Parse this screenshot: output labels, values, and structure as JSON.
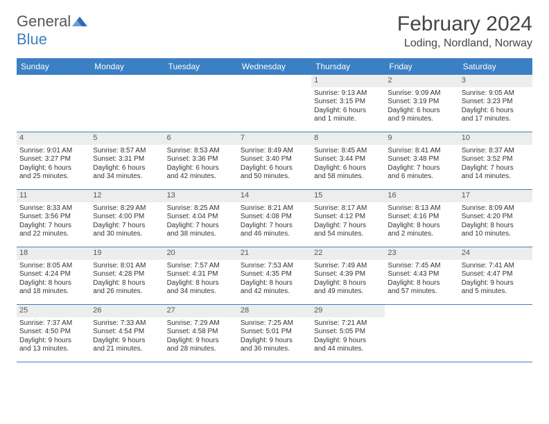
{
  "logo": {
    "part1": "General",
    "part2": "Blue"
  },
  "title": "February 2024",
  "location": "Loding, Nordland, Norway",
  "brand_color": "#3b7fc4",
  "header_bg": "#3b7fc4",
  "date_bar_bg": "#eceded",
  "day_headers": [
    "Sunday",
    "Monday",
    "Tuesday",
    "Wednesday",
    "Thursday",
    "Friday",
    "Saturday"
  ],
  "weeks": [
    [
      null,
      null,
      null,
      null,
      {
        "d": "1",
        "sr": "Sunrise: 9:13 AM",
        "ss": "Sunset: 3:15 PM",
        "dl1": "Daylight: 6 hours",
        "dl2": "and 1 minute."
      },
      {
        "d": "2",
        "sr": "Sunrise: 9:09 AM",
        "ss": "Sunset: 3:19 PM",
        "dl1": "Daylight: 6 hours",
        "dl2": "and 9 minutes."
      },
      {
        "d": "3",
        "sr": "Sunrise: 9:05 AM",
        "ss": "Sunset: 3:23 PM",
        "dl1": "Daylight: 6 hours",
        "dl2": "and 17 minutes."
      }
    ],
    [
      {
        "d": "4",
        "sr": "Sunrise: 9:01 AM",
        "ss": "Sunset: 3:27 PM",
        "dl1": "Daylight: 6 hours",
        "dl2": "and 25 minutes."
      },
      {
        "d": "5",
        "sr": "Sunrise: 8:57 AM",
        "ss": "Sunset: 3:31 PM",
        "dl1": "Daylight: 6 hours",
        "dl2": "and 34 minutes."
      },
      {
        "d": "6",
        "sr": "Sunrise: 8:53 AM",
        "ss": "Sunset: 3:36 PM",
        "dl1": "Daylight: 6 hours",
        "dl2": "and 42 minutes."
      },
      {
        "d": "7",
        "sr": "Sunrise: 8:49 AM",
        "ss": "Sunset: 3:40 PM",
        "dl1": "Daylight: 6 hours",
        "dl2": "and 50 minutes."
      },
      {
        "d": "8",
        "sr": "Sunrise: 8:45 AM",
        "ss": "Sunset: 3:44 PM",
        "dl1": "Daylight: 6 hours",
        "dl2": "and 58 minutes."
      },
      {
        "d": "9",
        "sr": "Sunrise: 8:41 AM",
        "ss": "Sunset: 3:48 PM",
        "dl1": "Daylight: 7 hours",
        "dl2": "and 6 minutes."
      },
      {
        "d": "10",
        "sr": "Sunrise: 8:37 AM",
        "ss": "Sunset: 3:52 PM",
        "dl1": "Daylight: 7 hours",
        "dl2": "and 14 minutes."
      }
    ],
    [
      {
        "d": "11",
        "sr": "Sunrise: 8:33 AM",
        "ss": "Sunset: 3:56 PM",
        "dl1": "Daylight: 7 hours",
        "dl2": "and 22 minutes."
      },
      {
        "d": "12",
        "sr": "Sunrise: 8:29 AM",
        "ss": "Sunset: 4:00 PM",
        "dl1": "Daylight: 7 hours",
        "dl2": "and 30 minutes."
      },
      {
        "d": "13",
        "sr": "Sunrise: 8:25 AM",
        "ss": "Sunset: 4:04 PM",
        "dl1": "Daylight: 7 hours",
        "dl2": "and 38 minutes."
      },
      {
        "d": "14",
        "sr": "Sunrise: 8:21 AM",
        "ss": "Sunset: 4:08 PM",
        "dl1": "Daylight: 7 hours",
        "dl2": "and 46 minutes."
      },
      {
        "d": "15",
        "sr": "Sunrise: 8:17 AM",
        "ss": "Sunset: 4:12 PM",
        "dl1": "Daylight: 7 hours",
        "dl2": "and 54 minutes."
      },
      {
        "d": "16",
        "sr": "Sunrise: 8:13 AM",
        "ss": "Sunset: 4:16 PM",
        "dl1": "Daylight: 8 hours",
        "dl2": "and 2 minutes."
      },
      {
        "d": "17",
        "sr": "Sunrise: 8:09 AM",
        "ss": "Sunset: 4:20 PM",
        "dl1": "Daylight: 8 hours",
        "dl2": "and 10 minutes."
      }
    ],
    [
      {
        "d": "18",
        "sr": "Sunrise: 8:05 AM",
        "ss": "Sunset: 4:24 PM",
        "dl1": "Daylight: 8 hours",
        "dl2": "and 18 minutes."
      },
      {
        "d": "19",
        "sr": "Sunrise: 8:01 AM",
        "ss": "Sunset: 4:28 PM",
        "dl1": "Daylight: 8 hours",
        "dl2": "and 26 minutes."
      },
      {
        "d": "20",
        "sr": "Sunrise: 7:57 AM",
        "ss": "Sunset: 4:31 PM",
        "dl1": "Daylight: 8 hours",
        "dl2": "and 34 minutes."
      },
      {
        "d": "21",
        "sr": "Sunrise: 7:53 AM",
        "ss": "Sunset: 4:35 PM",
        "dl1": "Daylight: 8 hours",
        "dl2": "and 42 minutes."
      },
      {
        "d": "22",
        "sr": "Sunrise: 7:49 AM",
        "ss": "Sunset: 4:39 PM",
        "dl1": "Daylight: 8 hours",
        "dl2": "and 49 minutes."
      },
      {
        "d": "23",
        "sr": "Sunrise: 7:45 AM",
        "ss": "Sunset: 4:43 PM",
        "dl1": "Daylight: 8 hours",
        "dl2": "and 57 minutes."
      },
      {
        "d": "24",
        "sr": "Sunrise: 7:41 AM",
        "ss": "Sunset: 4:47 PM",
        "dl1": "Daylight: 9 hours",
        "dl2": "and 5 minutes."
      }
    ],
    [
      {
        "d": "25",
        "sr": "Sunrise: 7:37 AM",
        "ss": "Sunset: 4:50 PM",
        "dl1": "Daylight: 9 hours",
        "dl2": "and 13 minutes."
      },
      {
        "d": "26",
        "sr": "Sunrise: 7:33 AM",
        "ss": "Sunset: 4:54 PM",
        "dl1": "Daylight: 9 hours",
        "dl2": "and 21 minutes."
      },
      {
        "d": "27",
        "sr": "Sunrise: 7:29 AM",
        "ss": "Sunset: 4:58 PM",
        "dl1": "Daylight: 9 hours",
        "dl2": "and 28 minutes."
      },
      {
        "d": "28",
        "sr": "Sunrise: 7:25 AM",
        "ss": "Sunset: 5:01 PM",
        "dl1": "Daylight: 9 hours",
        "dl2": "and 36 minutes."
      },
      {
        "d": "29",
        "sr": "Sunrise: 7:21 AM",
        "ss": "Sunset: 5:05 PM",
        "dl1": "Daylight: 9 hours",
        "dl2": "and 44 minutes."
      },
      null,
      null
    ]
  ]
}
